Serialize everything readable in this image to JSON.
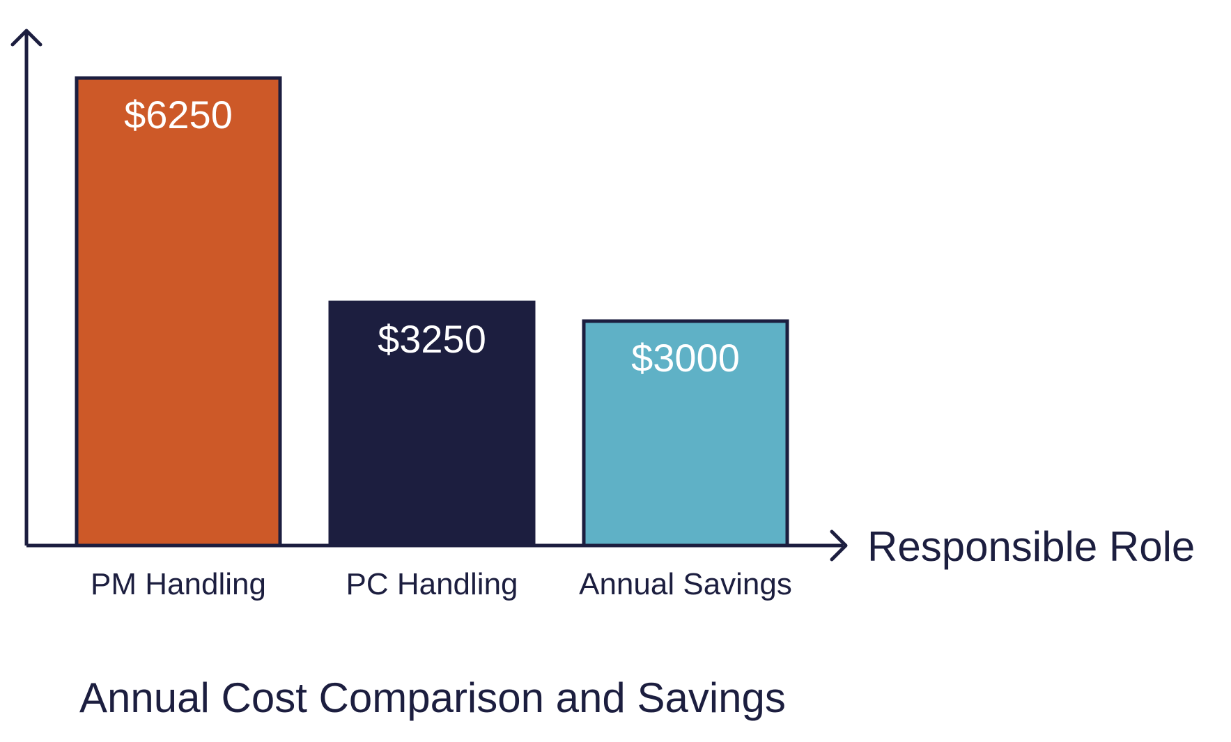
{
  "chart_data": {
    "type": "bar",
    "title": "Annual Cost Comparison and Savings",
    "xlabel": "Responsible Role",
    "ylabel": "",
    "categories": [
      "PM Handling",
      "PC Handling",
      "Annual Savings"
    ],
    "values": [
      6250,
      3250,
      3000
    ],
    "value_labels": [
      "$6250",
      "$3250",
      "$3000"
    ],
    "ylim": [
      0,
      6250
    ],
    "grid": false,
    "legend": "none",
    "colors": {
      "bars": [
        "#cd5928",
        "#1c1e3f",
        "#5fb1c6"
      ],
      "bar_outline": "#1c1e3f",
      "axis": "#1c1e3f",
      "text": "#1c1e3f",
      "value_text": "#ffffff"
    }
  }
}
